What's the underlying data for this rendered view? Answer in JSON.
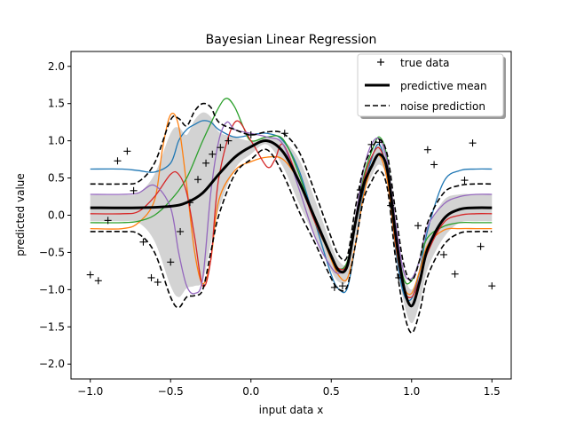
{
  "chart_data": {
    "type": "line",
    "title": "Bayesian Linear Regression",
    "xlabel": "input data x",
    "ylabel": "predicted value",
    "xlim": [
      -1.12,
      1.62
    ],
    "ylim": [
      -2.2,
      2.2
    ],
    "xticks": [
      -1.0,
      -0.5,
      0.0,
      0.5,
      1.0,
      1.5
    ],
    "xtick_labels": [
      "−1.0",
      "−0.5",
      "0.0",
      "0.5",
      "1.0",
      "1.5"
    ],
    "yticks": [
      -2.0,
      -1.5,
      -1.0,
      -0.5,
      0.0,
      0.5,
      1.0,
      1.5,
      2.0
    ],
    "ytick_labels": [
      "−2.0",
      "−1.5",
      "−1.0",
      "−0.5",
      "0.0",
      "0.5",
      "1.0",
      "1.5",
      "2.0"
    ],
    "grid": false,
    "legend_position": "top-right",
    "legend": [
      {
        "label": "true data",
        "style": "marker-plus"
      },
      {
        "label": "predictive mean",
        "style": "thick-solid"
      },
      {
        "label": "noise prediction",
        "style": "dashed"
      }
    ],
    "true_data": {
      "x": [
        -1.0,
        -0.95,
        -0.89,
        -0.83,
        -0.77,
        -0.73,
        -0.67,
        -0.62,
        -0.58,
        -0.5,
        -0.44,
        -0.38,
        -0.33,
        -0.28,
        -0.24,
        -0.19,
        -0.14,
        0.0,
        0.21,
        0.52,
        0.57,
        0.68,
        0.75,
        0.8,
        0.87,
        0.92,
        1.04,
        1.1,
        1.14,
        1.2,
        1.27,
        1.33,
        1.38,
        1.43,
        1.5
      ],
      "y": [
        -0.8,
        -0.88,
        -0.07,
        0.73,
        0.86,
        0.33,
        -0.36,
        -0.84,
        -0.9,
        -0.63,
        -0.22,
        0.17,
        0.48,
        0.7,
        0.82,
        0.91,
        1.0,
        1.08,
        1.1,
        -0.97,
        -0.95,
        0.34,
        0.95,
        0.98,
        0.13,
        -0.84,
        -0.14,
        0.88,
        0.68,
        -0.53,
        -0.79,
        0.47,
        0.97,
        -0.42,
        -0.95
      ]
    },
    "predictive_mean": {
      "x": [
        -1.0,
        -0.7,
        -0.5,
        -0.4,
        -0.3,
        -0.2,
        -0.1,
        0.0,
        0.1,
        0.2,
        0.3,
        0.4,
        0.5,
        0.55,
        0.6,
        0.65,
        0.7,
        0.75,
        0.8,
        0.85,
        0.9,
        0.95,
        1.0,
        1.05,
        1.1,
        1.2,
        1.3,
        1.4,
        1.5
      ],
      "y": [
        0.1,
        0.1,
        0.12,
        0.17,
        0.3,
        0.55,
        0.78,
        0.92,
        1.0,
        0.85,
        0.45,
        -0.05,
        -0.55,
        -0.75,
        -0.68,
        -0.1,
        0.4,
        0.65,
        0.82,
        0.6,
        -0.25,
        -0.95,
        -1.22,
        -0.9,
        -0.45,
        -0.05,
        0.08,
        0.1,
        0.1
      ]
    },
    "noise_upper": {
      "x": [
        -1.0,
        -0.8,
        -0.7,
        -0.6,
        -0.5,
        -0.45,
        -0.4,
        -0.35,
        -0.3,
        -0.25,
        -0.2,
        -0.1,
        0.0,
        0.1,
        0.2,
        0.3,
        0.4,
        0.5,
        0.55,
        0.6,
        0.65,
        0.7,
        0.75,
        0.8,
        0.85,
        0.9,
        0.95,
        1.0,
        1.05,
        1.1,
        1.2,
        1.3,
        1.4,
        1.5
      ],
      "y": [
        0.42,
        0.42,
        0.45,
        0.7,
        1.28,
        1.3,
        1.2,
        1.4,
        1.5,
        1.45,
        1.25,
        1.15,
        1.08,
        1.12,
        1.1,
        0.85,
        0.3,
        -0.3,
        -0.55,
        -0.55,
        0.1,
        0.62,
        0.88,
        1.02,
        0.8,
        0.05,
        -0.65,
        -0.88,
        -0.6,
        -0.1,
        0.3,
        0.4,
        0.42,
        0.42
      ]
    },
    "noise_lower": {
      "x": [
        -1.0,
        -0.8,
        -0.7,
        -0.6,
        -0.5,
        -0.45,
        -0.4,
        -0.35,
        -0.3,
        -0.25,
        -0.2,
        -0.1,
        0.0,
        0.1,
        0.2,
        0.3,
        0.4,
        0.5,
        0.55,
        0.6,
        0.65,
        0.7,
        0.75,
        0.8,
        0.85,
        0.9,
        0.95,
        1.0,
        1.05,
        1.1,
        1.2,
        1.3,
        1.4,
        1.5
      ],
      "y": [
        -0.22,
        -0.22,
        -0.25,
        -0.5,
        -1.1,
        -1.24,
        -1.1,
        -1.08,
        -1.0,
        -0.5,
        0.0,
        0.55,
        0.75,
        0.88,
        0.55,
        0.05,
        -0.38,
        -0.85,
        -1.0,
        -0.95,
        -0.4,
        0.2,
        0.45,
        0.6,
        0.35,
        -0.58,
        -1.28,
        -1.58,
        -1.3,
        -0.82,
        -0.4,
        -0.24,
        -0.22,
        -0.22
      ]
    },
    "band_upper": {
      "x": [
        -1.0,
        -0.8,
        -0.7,
        -0.6,
        -0.5,
        -0.45,
        -0.4,
        -0.35,
        -0.3,
        -0.25,
        -0.2,
        -0.1,
        0.0,
        0.1,
        0.2,
        0.3,
        0.4,
        0.5,
        0.55,
        0.6,
        0.65,
        0.7,
        0.75,
        0.8,
        0.85,
        0.9,
        0.95,
        1.0,
        1.05,
        1.1,
        1.2,
        1.3,
        1.4,
        1.5
      ],
      "y": [
        0.27,
        0.27,
        0.3,
        0.55,
        1.1,
        1.18,
        1.08,
        1.28,
        1.38,
        1.32,
        1.12,
        1.05,
        1.0,
        1.04,
        1.0,
        0.75,
        0.2,
        -0.4,
        -0.62,
        -0.62,
        0.0,
        0.55,
        0.8,
        0.95,
        0.72,
        -0.05,
        -0.75,
        -1.0,
        -0.7,
        -0.2,
        0.2,
        0.28,
        0.28,
        0.28
      ]
    },
    "band_lower": {
      "x": [
        -1.0,
        -0.8,
        -0.7,
        -0.6,
        -0.5,
        -0.45,
        -0.4,
        -0.35,
        -0.3,
        -0.25,
        -0.2,
        -0.1,
        0.0,
        0.1,
        0.2,
        0.3,
        0.4,
        0.5,
        0.55,
        0.6,
        0.65,
        0.7,
        0.75,
        0.8,
        0.85,
        0.9,
        0.95,
        1.0,
        1.05,
        1.1,
        1.2,
        1.3,
        1.4,
        1.5
      ],
      "y": [
        -0.08,
        -0.08,
        -0.1,
        -0.35,
        -0.95,
        -1.1,
        -0.98,
        -0.95,
        -0.88,
        -0.38,
        0.08,
        0.62,
        0.82,
        0.95,
        0.65,
        0.15,
        -0.3,
        -0.75,
        -0.9,
        -0.86,
        -0.3,
        0.28,
        0.52,
        0.68,
        0.45,
        -0.48,
        -1.15,
        -1.45,
        -1.18,
        -0.72,
        -0.3,
        -0.1,
        -0.08,
        -0.08
      ]
    },
    "sample_series": [
      {
        "color": "#1f77b4",
        "x": [
          -1.0,
          -0.8,
          -0.7,
          -0.6,
          -0.5,
          -0.45,
          -0.4,
          -0.35,
          -0.3,
          -0.25,
          -0.2,
          -0.1,
          0.0,
          0.1,
          0.2,
          0.3,
          0.4,
          0.5,
          0.55,
          0.6,
          0.65,
          0.7,
          0.75,
          0.8,
          0.85,
          0.9,
          0.95,
          1.0,
          1.05,
          1.1,
          1.2,
          1.3,
          1.4,
          1.5
        ],
        "y": [
          0.62,
          0.62,
          0.6,
          0.58,
          0.7,
          1.0,
          1.15,
          1.22,
          1.27,
          1.25,
          1.15,
          1.05,
          1.08,
          1.1,
          1.0,
          0.6,
          -0.1,
          -0.8,
          -1.0,
          -0.98,
          -0.4,
          0.3,
          0.75,
          0.95,
          0.5,
          -0.45,
          -1.05,
          -1.12,
          -0.75,
          -0.2,
          0.45,
          0.6,
          0.62,
          0.62
        ]
      },
      {
        "color": "#ff7f0e",
        "x": [
          -1.0,
          -0.8,
          -0.7,
          -0.6,
          -0.55,
          -0.5,
          -0.45,
          -0.4,
          -0.35,
          -0.3,
          -0.25,
          -0.2,
          -0.1,
          0.0,
          0.1,
          0.2,
          0.3,
          0.4,
          0.5,
          0.55,
          0.6,
          0.65,
          0.7,
          0.75,
          0.8,
          0.85,
          0.9,
          0.95,
          1.0,
          1.05,
          1.1,
          1.2,
          1.3,
          1.4,
          1.5
        ],
        "y": [
          -0.18,
          -0.18,
          -0.1,
          0.2,
          0.9,
          1.35,
          1.2,
          0.4,
          -0.5,
          -0.92,
          -0.6,
          0.2,
          0.6,
          0.72,
          0.78,
          0.75,
          0.45,
          -0.05,
          -0.6,
          -0.82,
          -0.85,
          -0.4,
          0.25,
          0.65,
          0.8,
          0.45,
          -0.4,
          -0.95,
          -1.05,
          -0.75,
          -0.4,
          -0.2,
          -0.18,
          -0.18,
          -0.18
        ]
      },
      {
        "color": "#2ca02c",
        "x": [
          -1.0,
          -0.8,
          -0.7,
          -0.6,
          -0.5,
          -0.4,
          -0.3,
          -0.2,
          -0.15,
          -0.1,
          -0.05,
          0.0,
          0.1,
          0.2,
          0.3,
          0.4,
          0.5,
          0.55,
          0.6,
          0.65,
          0.7,
          0.75,
          0.8,
          0.85,
          0.9,
          0.95,
          1.0,
          1.05,
          1.1,
          1.2,
          1.3,
          1.4,
          1.5
        ],
        "y": [
          -0.1,
          -0.1,
          -0.08,
          0.0,
          0.2,
          0.5,
          1.0,
          1.45,
          1.57,
          1.45,
          1.2,
          1.0,
          1.05,
          1.02,
          0.55,
          -0.1,
          -0.55,
          -0.72,
          -0.62,
          -0.1,
          0.5,
          0.85,
          1.05,
          0.75,
          -0.2,
          -0.85,
          -0.88,
          -0.6,
          -0.3,
          -0.15,
          -0.1,
          -0.1,
          -0.1
        ]
      },
      {
        "color": "#d62728",
        "x": [
          -1.0,
          -0.8,
          -0.7,
          -0.6,
          -0.5,
          -0.45,
          -0.4,
          -0.35,
          -0.3,
          -0.25,
          -0.2,
          -0.1,
          0.0,
          0.1,
          0.15,
          0.2,
          0.3,
          0.4,
          0.5,
          0.55,
          0.6,
          0.65,
          0.7,
          0.75,
          0.8,
          0.85,
          0.9,
          0.95,
          1.0,
          1.05,
          1.1,
          1.2,
          1.3,
          1.4,
          1.5
        ],
        "y": [
          0.02,
          0.02,
          0.05,
          0.25,
          0.55,
          0.55,
          0.3,
          -0.3,
          -0.95,
          -0.6,
          0.5,
          1.25,
          1.0,
          0.65,
          0.75,
          0.95,
          0.45,
          -0.1,
          -0.55,
          -0.72,
          -0.65,
          -0.1,
          0.45,
          0.78,
          0.9,
          0.55,
          -0.35,
          -0.98,
          -1.1,
          -0.85,
          -0.5,
          -0.1,
          0.0,
          0.02,
          0.02
        ]
      },
      {
        "color": "#9467bd",
        "x": [
          -1.0,
          -0.8,
          -0.7,
          -0.6,
          -0.5,
          -0.45,
          -0.4,
          -0.35,
          -0.3,
          -0.25,
          -0.2,
          -0.15,
          -0.1,
          0.0,
          0.1,
          0.2,
          0.3,
          0.4,
          0.5,
          0.55,
          0.6,
          0.65,
          0.7,
          0.75,
          0.8,
          0.85,
          0.9,
          0.95,
          1.0,
          1.05,
          1.1,
          1.2,
          1.3,
          1.4,
          1.5
        ],
        "y": [
          0.28,
          0.28,
          0.3,
          0.4,
          0.1,
          -0.5,
          -0.95,
          -1.05,
          -0.85,
          0.3,
          1.0,
          1.25,
          1.15,
          1.1,
          1.05,
          0.95,
          0.35,
          -0.3,
          -0.7,
          -0.78,
          -0.65,
          -0.05,
          0.6,
          0.95,
          1.02,
          0.7,
          -0.1,
          -0.75,
          -0.85,
          -0.6,
          -0.15,
          0.15,
          0.25,
          0.28,
          0.28
        ]
      }
    ]
  }
}
